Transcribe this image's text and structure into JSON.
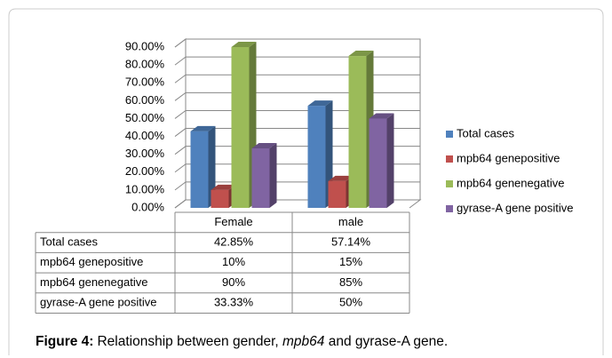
{
  "chart_data": {
    "type": "bar3d",
    "categories": [
      "Female",
      "male"
    ],
    "series": [
      {
        "name": "Total cases",
        "color": "#4f81bd",
        "values": [
          42.85,
          57.14
        ],
        "value_labels": [
          "42.85%",
          "57.14%"
        ]
      },
      {
        "name": "mpb64 genepositive",
        "color": "#c0504d",
        "values": [
          10,
          15
        ],
        "value_labels": [
          "10%",
          "15%"
        ]
      },
      {
        "name": "mpb64 genenegative",
        "color": "#9bbb59",
        "values": [
          90,
          85
        ],
        "value_labels": [
          "90%",
          "85%"
        ]
      },
      {
        "name": "gyrase-A gene positive",
        "color": "#8064a2",
        "values": [
          33.33,
          50
        ],
        "value_labels": [
          "33.33%",
          "50%"
        ]
      }
    ],
    "ylim": [
      0,
      90
    ],
    "yticks": [
      {
        "value": 0,
        "label": "0.00%"
      },
      {
        "value": 10,
        "label": "10.00%"
      },
      {
        "value": 20,
        "label": "20.00%"
      },
      {
        "value": 30,
        "label": "30.00%"
      },
      {
        "value": 40,
        "label": "40.00%"
      },
      {
        "value": 50,
        "label": "50.00%"
      },
      {
        "value": 60,
        "label": "60.00%"
      },
      {
        "value": 70,
        "label": "70.00%"
      },
      {
        "value": 80,
        "label": "80.00%"
      },
      {
        "value": 90,
        "label": "90.00%"
      }
    ],
    "grid": true,
    "legend": "right",
    "data_table": true
  },
  "caption": {
    "label": "Figure 4:",
    "parts": [
      "Relationship between gender, ",
      "mpb64",
      " and gyrase-A gene."
    ]
  }
}
